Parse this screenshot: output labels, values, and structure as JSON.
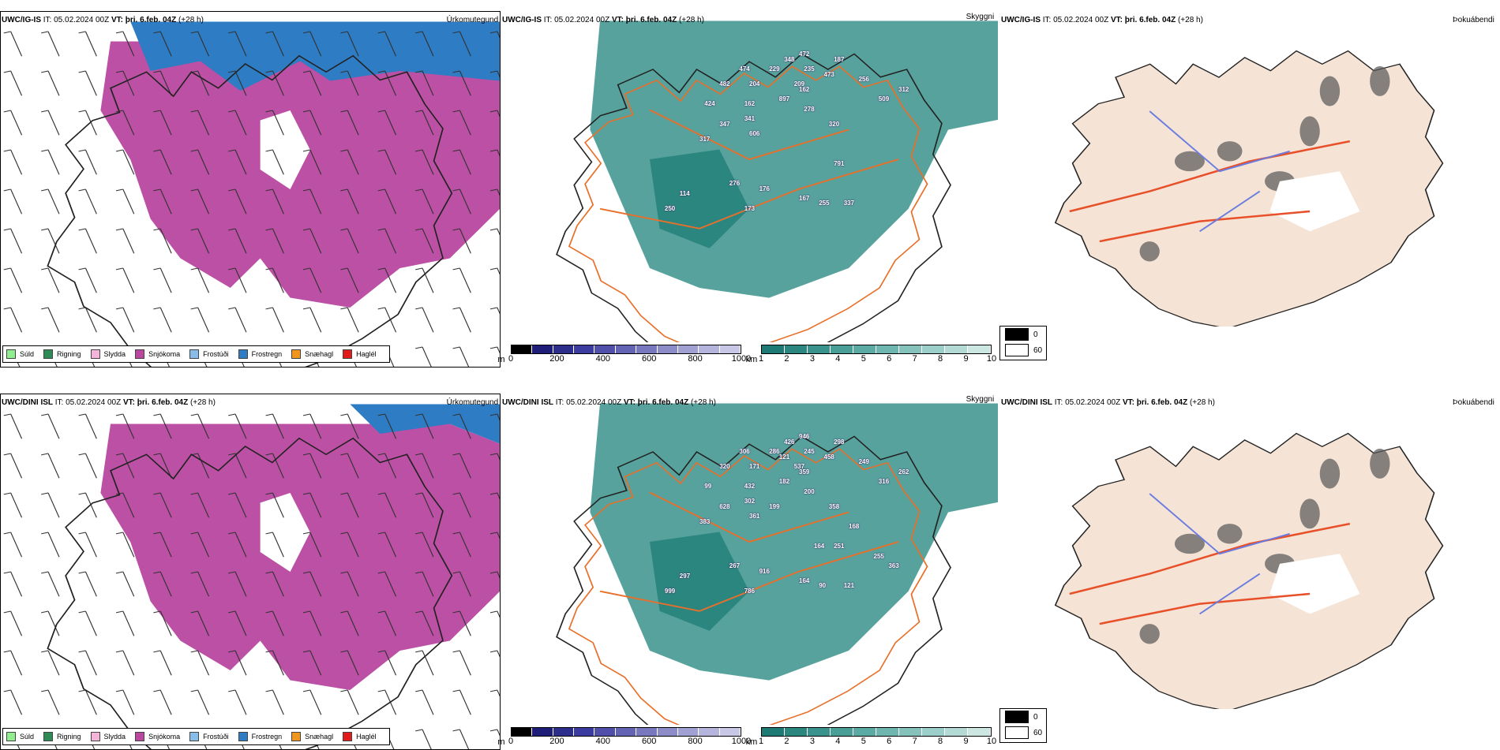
{
  "rows": [
    {
      "id": "top",
      "model_precip": "UWC/IG-IS",
      "model_cloud": "UWC/IG-IS",
      "model_fog": "UWC/IG-IS",
      "it": "IT: 05.02.2024 00Z",
      "vt_label": "VT:",
      "vt": "þri. 6.feb. 04Z",
      "lead": "(+28 h)",
      "cloud_labels": [
        "472",
        "482",
        "424",
        "347",
        "317",
        "474",
        "229",
        "348",
        "235",
        "187",
        "473",
        "204",
        "209",
        "162",
        "256",
        "312",
        "162",
        "897",
        "278",
        "509",
        "341",
        "606",
        "320",
        "791",
        "276",
        "114",
        "250",
        "176",
        "173",
        "167",
        "255",
        "337"
      ]
    },
    {
      "id": "bottom",
      "model_precip": "UWC/DINI ISL",
      "model_cloud": "UWC/DINI ISL",
      "model_fog": "UWC/DINI ISL",
      "it": "IT: 05.02.2024 00Z",
      "vt_label": "VT:",
      "vt": "þri. 6.feb. 04Z",
      "lead": "(+28 h)",
      "cloud_labels": [
        "946",
        "320",
        "99",
        "628",
        "383",
        "306",
        "286",
        "426",
        "245",
        "298",
        "458",
        "171",
        "537",
        "432",
        "249",
        "262",
        "359",
        "182",
        "200",
        "316",
        "302",
        "361",
        "358",
        "251",
        "267",
        "297",
        "999",
        "916",
        "786",
        "164",
        "90",
        "121",
        "121",
        "199",
        "168",
        "164",
        "255",
        "363"
      ]
    }
  ],
  "titles": {
    "precip": "Úrkomutegund",
    "cloud": "Skyggni",
    "fog": "Þokuábendi"
  },
  "precip_legend": [
    {
      "label": "Súld",
      "color": "#90ee90"
    },
    {
      "label": "Rigning",
      "color": "#2e8b57"
    },
    {
      "label": "Slydda",
      "color": "#f4b6d8"
    },
    {
      "label": "Snjókoma",
      "color": "#b8479f"
    },
    {
      "label": "Frostúði",
      "color": "#87bde8"
    },
    {
      "label": "Frostregn",
      "color": "#2e7cc4"
    },
    {
      "label": "Snæhagl",
      "color": "#f0961e"
    },
    {
      "label": "Haglél",
      "color": "#e31a1c"
    }
  ],
  "cloudbase_bar": {
    "unit": "m",
    "ticks": [
      "0",
      "200",
      "400",
      "600",
      "800",
      "1000"
    ],
    "colors": [
      "#000000",
      "#1e1e78",
      "#2d2d8c",
      "#3c3ca0",
      "#5050aa",
      "#6464b4",
      "#7878be",
      "#8c8cc8",
      "#a0a0d2",
      "#b4b4dc",
      "#c8c8e6"
    ]
  },
  "visibility_bar": {
    "unit": "km",
    "ticks": [
      "1",
      "2",
      "3",
      "4",
      "5",
      "6",
      "7",
      "8",
      "9",
      "10"
    ],
    "colors": [
      "#1e7a74",
      "#2c8680",
      "#3a928c",
      "#4a9e98",
      "#5caaa4",
      "#70b6b0",
      "#86c2bc",
      "#9cceca",
      "#b4dad6",
      "#cce6e2"
    ]
  },
  "fog_legend": [
    {
      "label": "0",
      "color": "#000000"
    },
    {
      "label": "60",
      "color": "#ffffff"
    }
  ],
  "colors": {
    "snow": "#b8479f",
    "freezing_rain": "#2e7cc4",
    "visibility": "#3a928c",
    "land": "#f5e4d6",
    "roads": "#e8702a"
  }
}
